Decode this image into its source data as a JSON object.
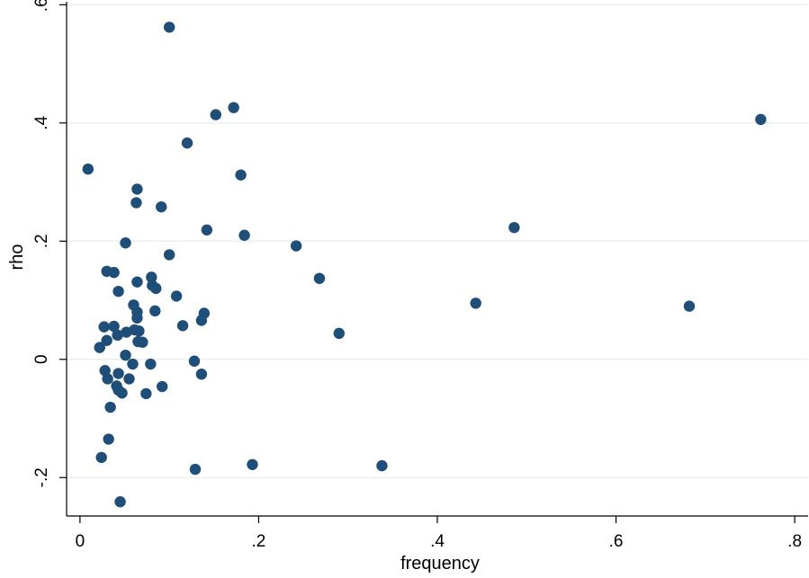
{
  "chart_data": {
    "type": "scatter",
    "title": "",
    "xlabel": "frequency",
    "ylabel": "rho",
    "xlim": [
      -0.015,
      0.815
    ],
    "ylim": [
      -0.265,
      0.605
    ],
    "xticks": [
      0,
      0.2,
      0.4,
      0.6,
      0.8
    ],
    "xtick_labels": [
      "0",
      ".2",
      ".4",
      ".6",
      ".8"
    ],
    "yticks": [
      -0.2,
      0,
      0.2,
      0.4,
      0.6
    ],
    "ytick_labels": [
      "-.2",
      "0",
      ".2",
      ".4",
      ".6"
    ],
    "grid": "horizontal",
    "marker_color": "#1f4e79",
    "gridline_color": "#e6ecef",
    "series": [
      {
        "points": [
          [
            0.1,
            0.562
          ],
          [
            0.172,
            0.426
          ],
          [
            0.152,
            0.414
          ],
          [
            0.762,
            0.406
          ],
          [
            0.12,
            0.366
          ],
          [
            0.009,
            0.322
          ],
          [
            0.18,
            0.312
          ],
          [
            0.064,
            0.288
          ],
          [
            0.063,
            0.265
          ],
          [
            0.091,
            0.258
          ],
          [
            0.486,
            0.223
          ],
          [
            0.142,
            0.219
          ],
          [
            0.184,
            0.21
          ],
          [
            0.051,
            0.197
          ],
          [
            0.242,
            0.192
          ],
          [
            0.1,
            0.177
          ],
          [
            0.03,
            0.149
          ],
          [
            0.038,
            0.147
          ],
          [
            0.08,
            0.139
          ],
          [
            0.268,
            0.137
          ],
          [
            0.064,
            0.131
          ],
          [
            0.081,
            0.125
          ],
          [
            0.085,
            0.12
          ],
          [
            0.043,
            0.115
          ],
          [
            0.108,
            0.107
          ],
          [
            0.443,
            0.095
          ],
          [
            0.06,
            0.092
          ],
          [
            0.682,
            0.09
          ],
          [
            0.084,
            0.082
          ],
          [
            0.064,
            0.08
          ],
          [
            0.139,
            0.078
          ],
          [
            0.064,
            0.07
          ],
          [
            0.136,
            0.066
          ],
          [
            0.115,
            0.057
          ],
          [
            0.038,
            0.056
          ],
          [
            0.027,
            0.055
          ],
          [
            0.061,
            0.05
          ],
          [
            0.066,
            0.048
          ],
          [
            0.052,
            0.046
          ],
          [
            0.29,
            0.044
          ],
          [
            0.042,
            0.041
          ],
          [
            0.03,
            0.032
          ],
          [
            0.065,
            0.03
          ],
          [
            0.07,
            0.029
          ],
          [
            0.022,
            0.02
          ],
          [
            0.051,
            0.007
          ],
          [
            0.128,
            -0.003
          ],
          [
            0.059,
            -0.008
          ],
          [
            0.079,
            -0.008
          ],
          [
            0.028,
            -0.019
          ],
          [
            0.043,
            -0.024
          ],
          [
            0.136,
            -0.025
          ],
          [
            0.031,
            -0.033
          ],
          [
            0.055,
            -0.033
          ],
          [
            0.041,
            -0.045
          ],
          [
            0.092,
            -0.046
          ],
          [
            0.043,
            -0.052
          ],
          [
            0.047,
            -0.057
          ],
          [
            0.074,
            -0.058
          ],
          [
            0.034,
            -0.081
          ],
          [
            0.032,
            -0.135
          ],
          [
            0.024,
            -0.166
          ],
          [
            0.193,
            -0.178
          ],
          [
            0.338,
            -0.18
          ],
          [
            0.129,
            -0.186
          ],
          [
            0.045,
            -0.241
          ]
        ]
      }
    ]
  }
}
